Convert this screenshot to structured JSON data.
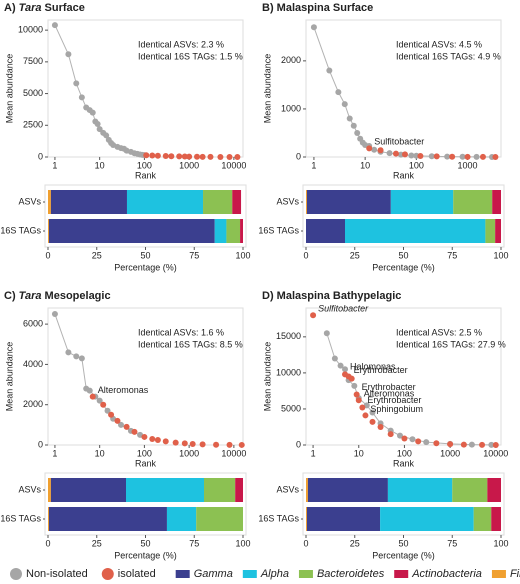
{
  "chart_data": [
    {
      "type": "scatter",
      "title_parts": [
        {
          "text": "A) "
        },
        {
          "text": "Tara",
          "italic": true
        },
        {
          "text": " Surface"
        }
      ],
      "xlabel": "Rank",
      "ylabel": "Mean abundance",
      "xscale": "log",
      "xlim": [
        0.7,
        16000
      ],
      "ylim": [
        0,
        10800
      ],
      "xticks": [
        1,
        10,
        100,
        1000,
        10000
      ],
      "yticks": [
        0,
        2500,
        5000,
        7500,
        10000
      ],
      "line_color": "#b3b3b3",
      "stats_text": [
        "Identical ASVs: 2.3 %",
        "Identical 16S TAGs: 1.5 %"
      ],
      "series": [
        {
          "name": "Non-isolated",
          "color": "#a6a6a6",
          "x": [
            1,
            2,
            3,
            4,
            5,
            6,
            7,
            8,
            9,
            10,
            12,
            14,
            16,
            18,
            20,
            25,
            30,
            35,
            40,
            50,
            60,
            70,
            80,
            90,
            100
          ],
          "y": [
            10400,
            8100,
            5800,
            4700,
            3900,
            3700,
            3500,
            2800,
            2600,
            2200,
            1900,
            1700,
            1350,
            1100,
            950,
            800,
            700,
            650,
            500,
            400,
            300,
            250,
            200,
            170,
            150
          ]
        },
        {
          "name": "isolated",
          "color": "#e0604a",
          "x": [
            110,
            150,
            200,
            300,
            400,
            600,
            800,
            1000,
            1500,
            2000,
            3000,
            5000,
            8000,
            12000
          ],
          "y": [
            140,
            120,
            100,
            80,
            60,
            45,
            35,
            25,
            18,
            12,
            8,
            4,
            2,
            1
          ]
        }
      ],
      "annotations": []
    },
    {
      "type": "bar",
      "orientation": "horizontal",
      "stacked": true,
      "categories": [
        "ASVs",
        "16S TAGs"
      ],
      "xlabel": "Percentage (%)",
      "xlim": [
        0,
        100
      ],
      "xticks": [
        0,
        25,
        50,
        75,
        100
      ],
      "series": [
        {
          "name": "Firmicutes",
          "color": "#f0a030",
          "values": [
            1.5,
            0.5
          ]
        },
        {
          "name": "Gamma",
          "color": "#3b3f8f",
          "values": [
            39,
            85
          ]
        },
        {
          "name": "Alpha",
          "color": "#1ec2e0",
          "values": [
            39,
            6
          ]
        },
        {
          "name": "Bacteroidetes",
          "color": "#8cc152",
          "values": [
            15,
            7
          ]
        },
        {
          "name": "Actinobacteria",
          "color": "#c8184a",
          "values": [
            4.5,
            1.5
          ]
        }
      ]
    },
    {
      "type": "scatter",
      "title_parts": [
        {
          "text": "B) Malaspina Surface"
        }
      ],
      "xlabel": "Rank",
      "ylabel": "Mean abundance",
      "xscale": "log",
      "xlim": [
        0.7,
        4500
      ],
      "ylim": [
        0,
        2850
      ],
      "xticks": [
        1,
        10,
        100,
        1000
      ],
      "yticks": [
        0,
        1000,
        2000
      ],
      "line_color": "#b3b3b3",
      "stats_text": [
        "Identical ASVs: 4.5 %",
        "Identical 16S TAGs: 4.9 %"
      ],
      "series": [
        {
          "name": "Non-isolated",
          "color": "#a6a6a6",
          "x": [
            1,
            2,
            3,
            4,
            5,
            6,
            7,
            8,
            9,
            10,
            12,
            15,
            20,
            30,
            50,
            80,
            100,
            200,
            400,
            800,
            1500,
            3000
          ],
          "y": [
            2700,
            1800,
            1350,
            1100,
            800,
            650,
            500,
            380,
            300,
            250,
            230,
            150,
            110,
            80,
            50,
            30,
            25,
            15,
            8,
            4,
            2,
            1
          ]
        },
        {
          "name": "isolated",
          "color": "#e0604a",
          "x": [
            12,
            20,
            40,
            60,
            120,
            250,
            500,
            1000,
            2000,
            3500
          ],
          "y": [
            180,
            140,
            70,
            55,
            22,
            12,
            6,
            3,
            1.5,
            0.5
          ]
        }
      ],
      "annotations": [
        {
          "text": "Sulfitobacter",
          "x": 12,
          "y": 180
        }
      ]
    },
    {
      "type": "bar",
      "orientation": "horizontal",
      "stacked": true,
      "categories": [
        "ASVs",
        "16S TAGs"
      ],
      "xlabel": "Percentage (%)",
      "xlim": [
        0,
        100
      ],
      "xticks": [
        0,
        25,
        50,
        75,
        100
      ],
      "series": [
        {
          "name": "Firmicutes",
          "color": "#f0a030",
          "values": [
            0.5,
            0
          ]
        },
        {
          "name": "Gamma",
          "color": "#3b3f8f",
          "values": [
            43,
            20
          ]
        },
        {
          "name": "Alpha",
          "color": "#1ec2e0",
          "values": [
            32,
            72
          ]
        },
        {
          "name": "Bacteroidetes",
          "color": "#8cc152",
          "values": [
            20,
            5
          ]
        },
        {
          "name": "Actinobacteria",
          "color": "#c8184a",
          "values": [
            4.5,
            3
          ]
        }
      ]
    },
    {
      "type": "scatter",
      "title_parts": [
        {
          "text": "C) "
        },
        {
          "text": "Tara",
          "italic": true
        },
        {
          "text": " Mesopelagic"
        }
      ],
      "xlabel": "Rank",
      "ylabel": "Mean abundance",
      "xscale": "log",
      "xlim": [
        0.7,
        16000
      ],
      "ylim": [
        0,
        6800
      ],
      "xticks": [
        1,
        10,
        100,
        1000,
        10000
      ],
      "yticks": [
        0,
        2000,
        4000,
        6000
      ],
      "line_color": "#b3b3b3",
      "stats_text": [
        "Identical ASVs: 1.6 %",
        "Identical 16S TAGs: 8.5 %"
      ],
      "series": [
        {
          "name": "Non-isolated",
          "color": "#a6a6a6",
          "x": [
            1,
            2,
            3,
            4,
            5,
            6,
            8,
            10,
            15,
            20,
            30,
            50,
            80
          ],
          "y": [
            6500,
            4600,
            4400,
            4300,
            2800,
            2700,
            2400,
            2200,
            1700,
            1300,
            1000,
            700,
            500
          ]
        },
        {
          "name": "isolated",
          "color": "#e0604a",
          "x": [
            7,
            12,
            18,
            25,
            40,
            60,
            100,
            150,
            200,
            300,
            500,
            800,
            1200,
            2000,
            4000,
            8000,
            15000
          ],
          "y": [
            2400,
            2000,
            1500,
            1200,
            900,
            650,
            400,
            300,
            250,
            180,
            120,
            80,
            50,
            30,
            15,
            8,
            3
          ]
        }
      ],
      "annotations": [
        {
          "text": "Alteromonas",
          "x": 7,
          "y": 2400
        }
      ]
    },
    {
      "type": "bar",
      "orientation": "horizontal",
      "stacked": true,
      "categories": [
        "ASVs",
        "16S TAGs"
      ],
      "xlabel": "Percentage (%)",
      "xlim": [
        0,
        100
      ],
      "xticks": [
        0,
        25,
        50,
        75,
        100
      ],
      "series": [
        {
          "name": "Firmicutes",
          "color": "#f0a030",
          "values": [
            1.5,
            0.5
          ]
        },
        {
          "name": "Gamma",
          "color": "#3b3f8f",
          "values": [
            38.5,
            60.5
          ]
        },
        {
          "name": "Alpha",
          "color": "#1ec2e0",
          "values": [
            40,
            15
          ]
        },
        {
          "name": "Bacteroidetes",
          "color": "#8cc152",
          "values": [
            16,
            24
          ]
        },
        {
          "name": "Actinobacteria",
          "color": "#c8184a",
          "values": [
            4,
            0
          ]
        }
      ]
    },
    {
      "type": "scatter",
      "title_parts": [
        {
          "text": "D) Malaspina Bathypelagic"
        }
      ],
      "xlabel": "Rank",
      "ylabel": "Mean abundance",
      "xscale": "log",
      "xlim": [
        0.7,
        13000
      ],
      "ylim": [
        0,
        19000
      ],
      "xticks": [
        1,
        10,
        100,
        1000,
        10000
      ],
      "yticks": [
        0,
        5000,
        10000,
        15000
      ],
      "line_color": "#b3b3b3",
      "stats_text": [
        "Identical ASVs: 2.5 %",
        "Identical 16S TAGs: 27.9 %"
      ],
      "series": [
        {
          "name": "Non-isolated",
          "color": "#a6a6a6",
          "x": [
            2,
            3,
            4,
            5,
            6,
            8,
            10,
            15,
            20,
            30,
            50,
            80,
            150,
            300,
            1000,
            3000,
            8000
          ],
          "y": [
            15500,
            12000,
            11000,
            10500,
            9000,
            8200,
            6500,
            5500,
            4500,
            3000,
            2000,
            1300,
            800,
            400,
            150,
            50,
            10
          ]
        },
        {
          "name": "isolated",
          "color": "#e0604a",
          "x": [
            1,
            5,
            6,
            7,
            9,
            10,
            12,
            14,
            20,
            30,
            50,
            100,
            200,
            500,
            1000,
            2000,
            5000,
            10000
          ],
          "y": [
            18000,
            9800,
            9500,
            9200,
            7000,
            6200,
            5200,
            4100,
            3200,
            2500,
            1500,
            900,
            500,
            250,
            120,
            60,
            20,
            5
          ]
        }
      ],
      "annotations": [
        {
          "text": "Sulfitobacter",
          "x": 1,
          "y": 18000,
          "italic": true
        },
        {
          "text": "Halomonas",
          "x": 5,
          "y": 9800
        },
        {
          "text": "Erythrobacter",
          "x": 6,
          "y": 9500
        },
        {
          "text": "Erythrobacter",
          "x": 9,
          "y": 7000
        },
        {
          "text": "Alteromonas",
          "x": 10,
          "y": 6200
        },
        {
          "text": "Erythrobacter",
          "x": 12,
          "y": 5200
        },
        {
          "text": "Sphingobium",
          "x": 14,
          "y": 4100
        }
      ]
    },
    {
      "type": "bar",
      "orientation": "horizontal",
      "stacked": true,
      "categories": [
        "ASVs",
        "16S TAGs"
      ],
      "xlabel": "Percentage (%)",
      "xlim": [
        0,
        100
      ],
      "xticks": [
        0,
        25,
        50,
        75,
        100
      ],
      "series": [
        {
          "name": "Firmicutes",
          "color": "#f0a030",
          "values": [
            1,
            0.5
          ]
        },
        {
          "name": "Gamma",
          "color": "#3b3f8f",
          "values": [
            41,
            37.5
          ]
        },
        {
          "name": "Alpha",
          "color": "#1ec2e0",
          "values": [
            33,
            48
          ]
        },
        {
          "name": "Bacteroidetes",
          "color": "#8cc152",
          "values": [
            18,
            9
          ]
        },
        {
          "name": "Actinobacteria",
          "color": "#c8184a",
          "values": [
            7,
            5
          ]
        }
      ]
    }
  ]
}
